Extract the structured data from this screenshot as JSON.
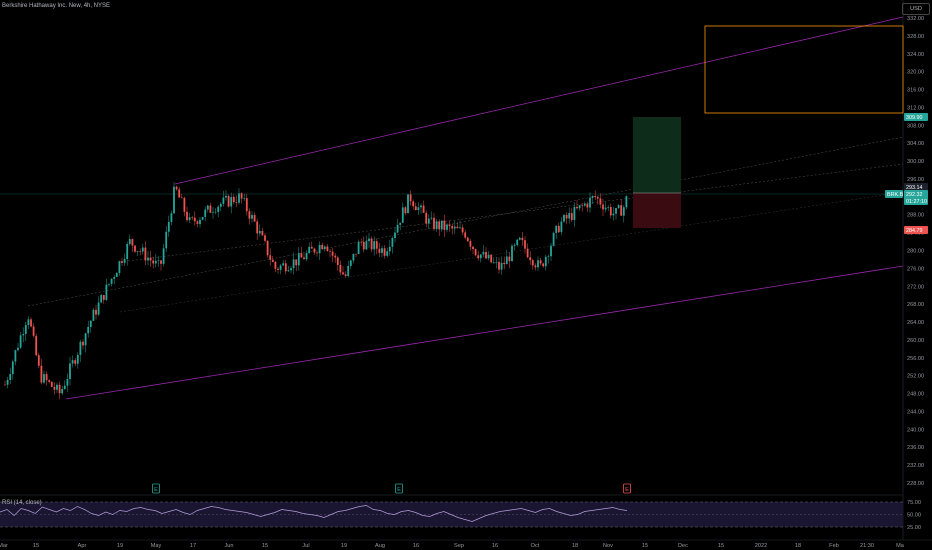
{
  "header": {
    "symbol_title": "Berkshire Hathaway Inc. New, 4h, NYSE",
    "currency": "USD"
  },
  "rsi": {
    "label": "RSI (14, close)",
    "levels": [
      75,
      50,
      25
    ],
    "level_labels": [
      "75.00",
      "50.00",
      "25.00"
    ],
    "values": [
      55,
      60,
      48,
      62,
      58,
      52,
      65,
      60,
      55,
      62,
      58,
      66,
      60,
      52,
      48,
      55,
      50,
      58,
      56,
      62,
      64,
      60,
      58,
      52,
      56,
      60,
      54,
      50,
      58,
      62,
      66,
      64,
      60,
      58,
      56,
      54,
      50,
      46,
      50,
      54,
      60,
      58,
      56,
      52,
      50,
      48,
      44,
      50,
      56,
      58,
      62,
      66,
      68,
      60,
      58,
      52,
      50,
      56,
      58,
      54,
      48,
      46,
      52,
      56,
      50,
      44,
      40,
      36,
      42,
      48,
      52,
      56,
      58,
      60,
      62,
      58,
      54,
      60,
      62,
      56,
      52,
      48,
      50,
      56,
      58,
      60,
      62,
      64,
      60,
      58
    ]
  },
  "price_axis": {
    "labels": [
      "332.00",
      "328.00",
      "324.00",
      "320.00",
      "316.00",
      "312.00",
      "308.00",
      "304.00",
      "300.00",
      "296.00",
      "292.00",
      "288.00",
      "284.00",
      "280.00",
      "276.00",
      "272.00",
      "268.00",
      "264.00",
      "260.00",
      "256.00",
      "252.00",
      "248.00",
      "244.00",
      "240.00",
      "236.00",
      "232.00",
      "228.00"
    ]
  },
  "time_axis": {
    "labels": [
      "Mar",
      "15",
      "Apr",
      "19",
      "May",
      "17",
      "Jun",
      "15",
      "Jul",
      "19",
      "Aug",
      "16",
      "Sep",
      "16",
      "Oct",
      "18",
      "Nov",
      "15",
      "Dec",
      "15",
      "2022",
      "18",
      "Feb",
      "21:30",
      "Ma"
    ]
  },
  "price_tags": {
    "target": "309.90",
    "current_1": "293.14",
    "symbol_chip": "BRK.B",
    "current_2": "292.32",
    "countdown": "01:27:10",
    "stop": "284.79"
  },
  "event_markers": [
    "E",
    "E",
    "E"
  ],
  "colors": {
    "up": "#26a69a",
    "down": "#ef5350",
    "channel": "#9c27b0",
    "box": "#ff9800",
    "target_zone": "#0d2d1a",
    "stop_zone": "#3a0c12"
  },
  "chart_data": {
    "type": "candlestick",
    "title": "Berkshire Hathaway Inc. New, 4h, NYSE",
    "ylim": [
      226,
      334
    ],
    "series": [
      {
        "x": "Mar",
        "close": 250
      },
      {
        "x": "15",
        "close": 262
      },
      {
        "x": "Apr",
        "close": 258
      },
      {
        "x": "19",
        "close": 276
      },
      {
        "x": "May",
        "close": 293
      },
      {
        "x": "17",
        "close": 289
      },
      {
        "x": "Jun",
        "close": 292
      },
      {
        "x": "15",
        "close": 277
      },
      {
        "x": "Jul",
        "close": 279
      },
      {
        "x": "19",
        "close": 280
      },
      {
        "x": "Aug",
        "close": 282
      },
      {
        "x": "16",
        "close": 288
      },
      {
        "x": "Sep",
        "close": 286
      },
      {
        "x": "16",
        "close": 277
      },
      {
        "x": "Oct",
        "close": 276
      },
      {
        "x": "18",
        "close": 284
      },
      {
        "x": "Nov",
        "close": 292.32
      }
    ],
    "target_price": 309.9,
    "stop_price": 284.79,
    "last_price": 292.32
  }
}
